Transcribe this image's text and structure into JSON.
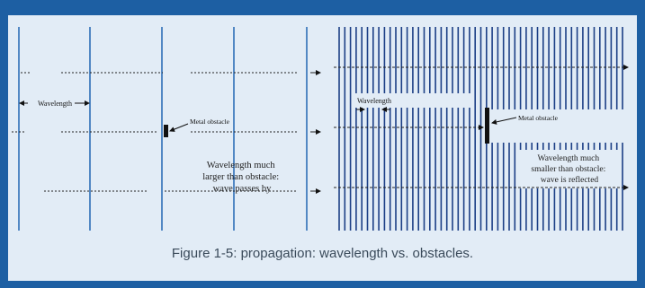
{
  "colors": {
    "frame": "#1d5fa3",
    "panel": "#e2ecf6",
    "wave_long": "#2f6fb8",
    "wave_short": "#1c3f86",
    "obstacle": "#111111",
    "dotted": "#222222"
  },
  "left_diagram": {
    "wavelength_label": "Wavelength",
    "obstacle_label": "Metal obstacle",
    "note_lines": [
      "Wavelength much",
      "larger than obstacle:",
      "wave passes by"
    ]
  },
  "right_diagram": {
    "wavelength_label": "Wavelength",
    "obstacle_label": "Metal obstacle",
    "note_lines": [
      "Wavelength much",
      "smaller than obstacle:",
      "wave is reflected"
    ]
  },
  "caption": "Figure 1-5: propagation: wavelength vs. obstacles."
}
